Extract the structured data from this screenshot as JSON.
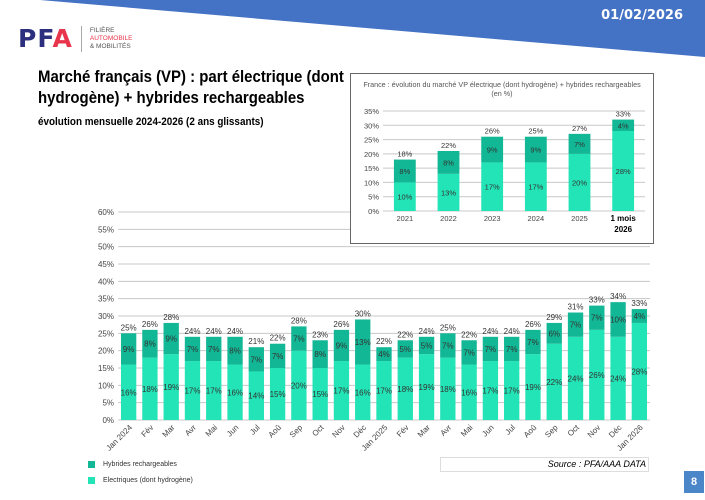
{
  "header": {
    "date": "01/02/2026",
    "logo_text": "PFA",
    "logo_sub": [
      "FILIÈRE",
      "AUTOMOBILE",
      "& MOBILITÉS"
    ]
  },
  "title": "Marché français (VP) : part électrique (dont hydrogène) + hybrides rechargeables",
  "subtitle": "évolution mensuelle 2024-2026 (2 ans glissants)",
  "legend": {
    "hybrid": "Hybrides rechargeables",
    "electric": "Electriques (dont hydrogène)"
  },
  "source": "Source : PFA/AAA DATA",
  "page_number": "8",
  "colors": {
    "electric": "#22e4b6",
    "hybrid": "#12b795",
    "band": "#4472c4"
  },
  "chart_data": [
    {
      "type": "bar",
      "stacked": true,
      "title": "",
      "ylim": [
        0,
        60
      ],
      "yticks": [
        "0%",
        "5%",
        "10%",
        "15%",
        "20%",
        "25%",
        "30%",
        "35%",
        "40%",
        "45%",
        "50%",
        "55%",
        "60%"
      ],
      "categories": [
        "Jan 2024",
        "Fév",
        "Mar",
        "Avr",
        "Mai",
        "Jun",
        "Jul",
        "Aoû",
        "Sep",
        "Oct",
        "Nov",
        "Déc",
        "Jan 2025",
        "Fév",
        "Mar",
        "Avr",
        "Mai",
        "Jun",
        "Jul",
        "Aoû",
        "Sep",
        "Oct",
        "Nov",
        "Déc",
        "Jan 2026"
      ],
      "series": [
        {
          "name": "Electriques (dont hydrogène)",
          "values": [
            16,
            18,
            19,
            17,
            17,
            16,
            14,
            15,
            20,
            15,
            17,
            16,
            17,
            18,
            19,
            18,
            16,
            17,
            17,
            19,
            22,
            24,
            26,
            24,
            28
          ]
        },
        {
          "name": "Hybrides rechargeables",
          "values": [
            9,
            8,
            9,
            7,
            7,
            8,
            7,
            7,
            7,
            8,
            9,
            13,
            4,
            5,
            5,
            7,
            7,
            7,
            7,
            7,
            6,
            7,
            7,
            10,
            4
          ]
        }
      ],
      "totals": [
        25,
        26,
        28,
        24,
        24,
        24,
        21,
        22,
        28,
        23,
        26,
        30,
        22,
        22,
        24,
        25,
        22,
        24,
        24,
        26,
        29,
        31,
        33,
        34,
        33
      ]
    },
    {
      "type": "bar",
      "stacked": true,
      "title": "France : évolution du marché VP électrique (dont hydrogène) + hybrides rechargeables (en %)",
      "ylim": [
        0,
        35
      ],
      "yticks": [
        "0%",
        "5%",
        "10%",
        "15%",
        "20%",
        "25%",
        "30%",
        "35%"
      ],
      "categories": [
        "2021",
        "2022",
        "2023",
        "2024",
        "2025",
        "1 mois 2026"
      ],
      "series": [
        {
          "name": "Electriques (dont hydrogène)",
          "values": [
            10,
            13,
            17,
            17,
            20,
            28
          ]
        },
        {
          "name": "Hybrides rechargeables",
          "values": [
            8,
            8,
            9,
            9,
            7,
            4
          ]
        }
      ],
      "totals": [
        18,
        22,
        26,
        25,
        27,
        33
      ]
    }
  ]
}
